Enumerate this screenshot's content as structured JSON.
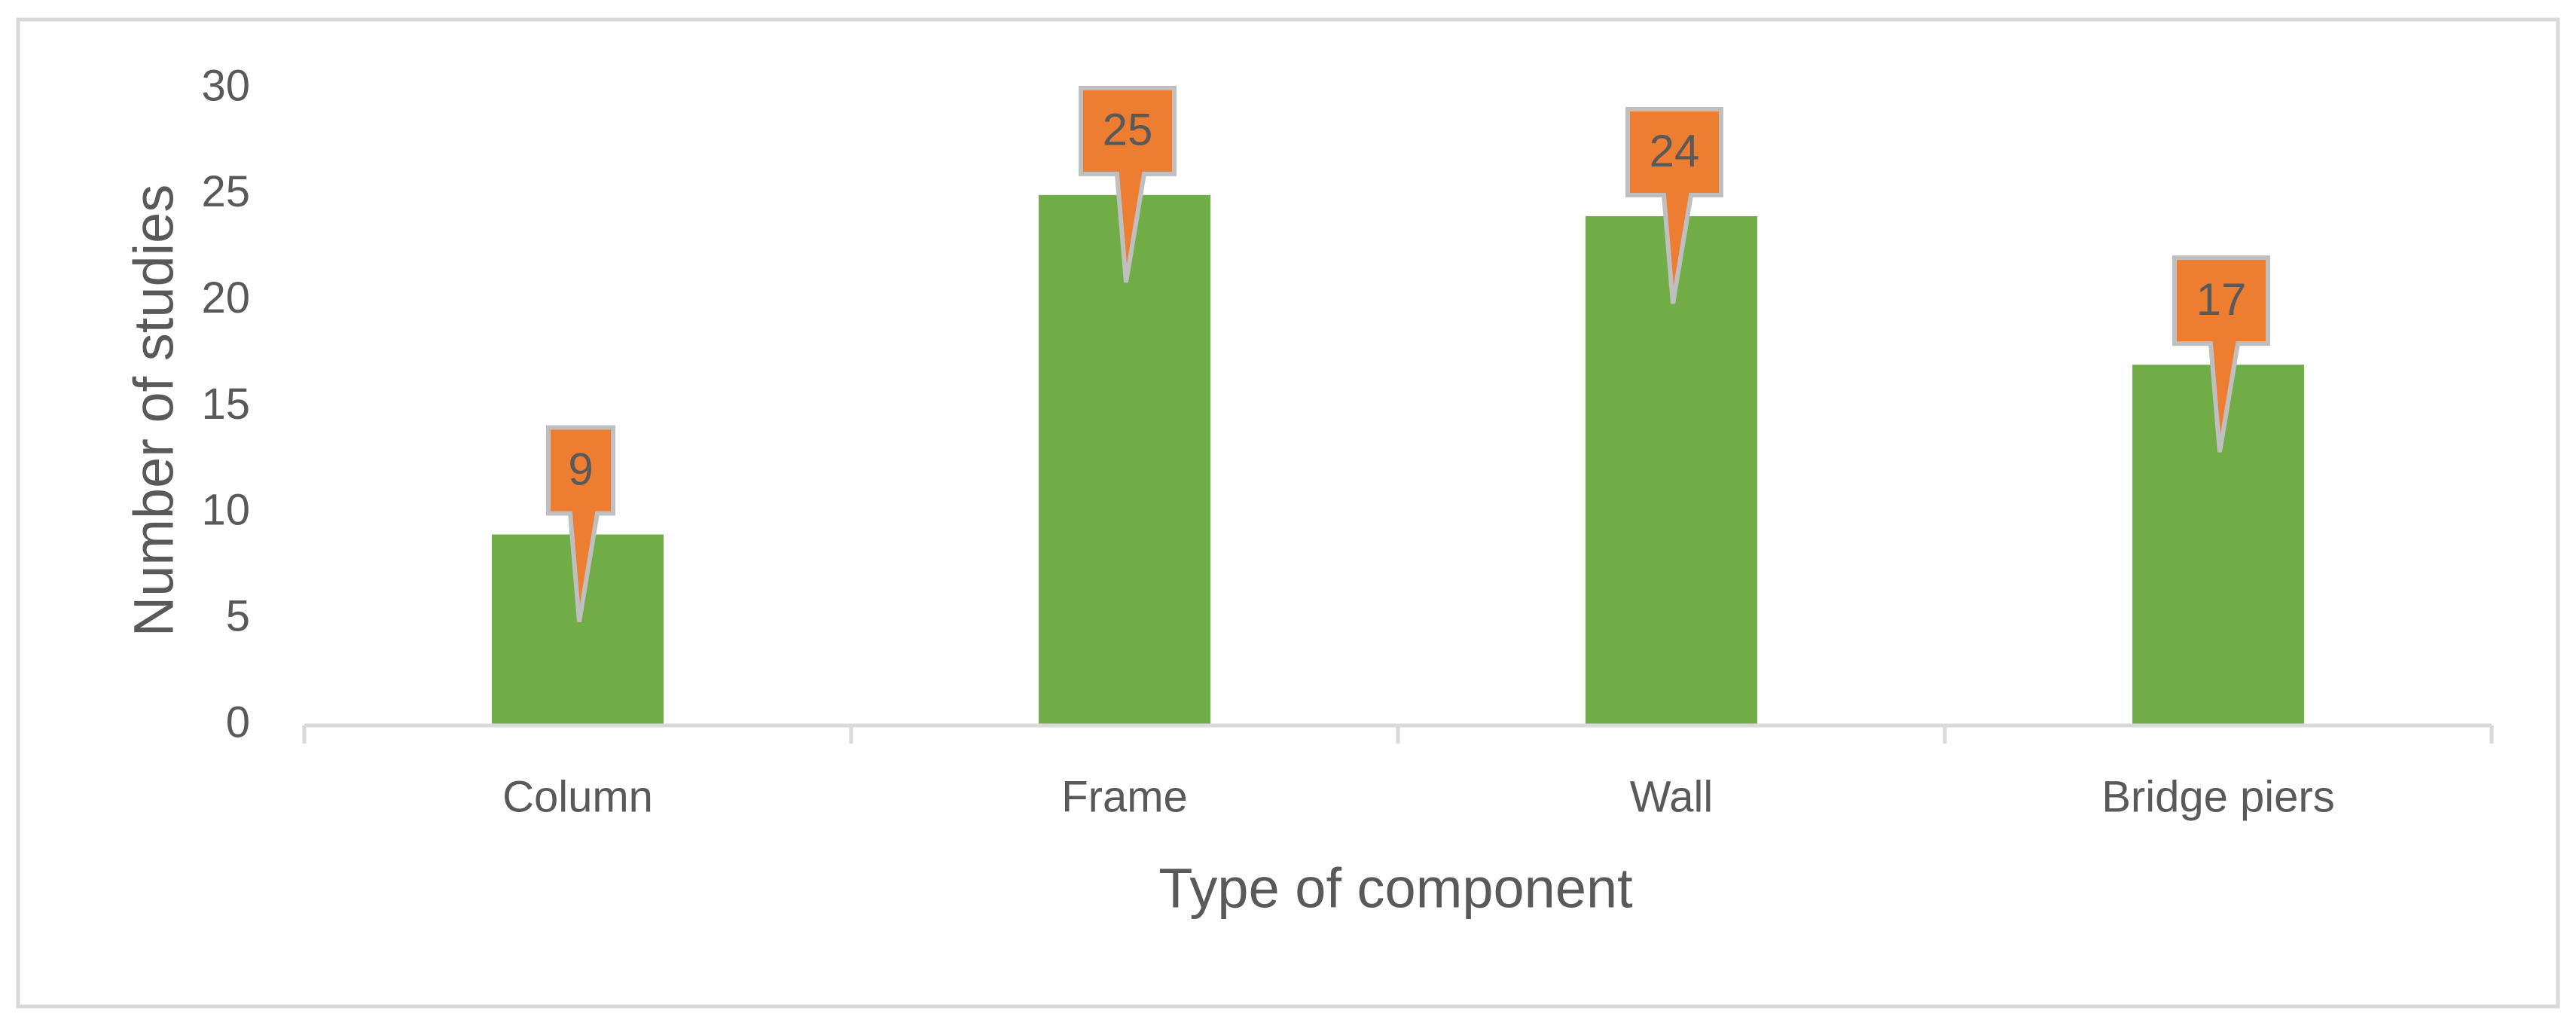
{
  "chart_data": {
    "type": "bar",
    "title": "",
    "xlabel": "Type of component",
    "ylabel": "Number of studies",
    "categories": [
      "Column",
      "Frame",
      "Wall",
      "Bridge piers"
    ],
    "values": [
      9,
      25,
      24,
      17
    ],
    "data_labels": [
      "9",
      "25",
      "24",
      "17"
    ],
    "y_ticks": [
      "0",
      "5",
      "10",
      "15",
      "20",
      "25",
      "30"
    ],
    "ylim": [
      0,
      30
    ],
    "grid": false,
    "legend": "none",
    "colors": {
      "bar": "#70AD47",
      "callout_fill": "#ED7D31",
      "callout_border": "#BFBFBF",
      "axis": "#D9D9D9",
      "text": "#595959",
      "frame": "#D9D9D9"
    }
  }
}
